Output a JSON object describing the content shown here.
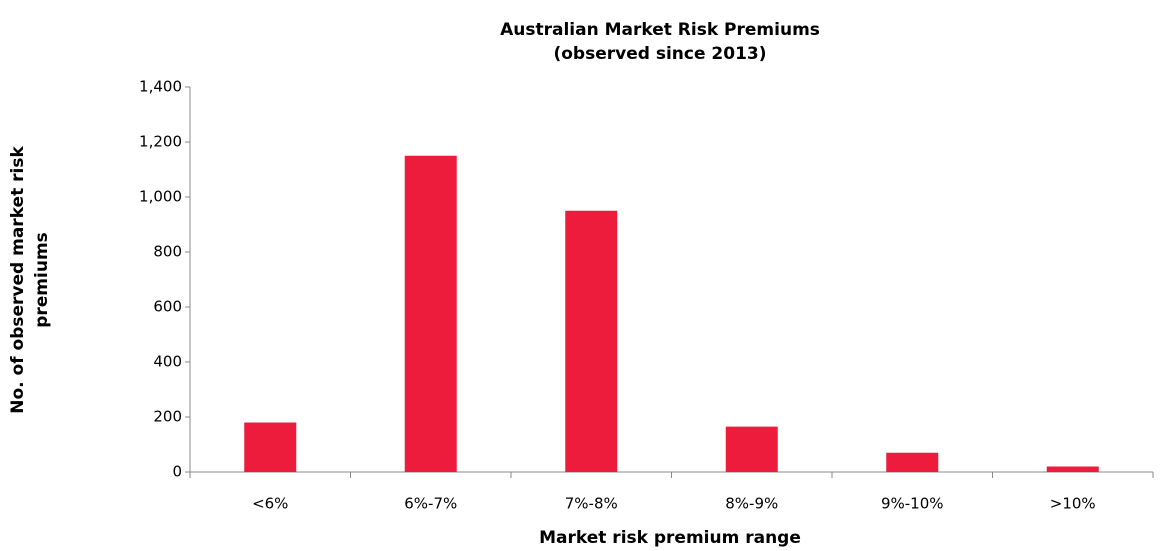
{
  "chart_data": {
    "type": "bar",
    "title": "Australian Market Risk Premiums",
    "subtitle": "(observed since 2013)",
    "x_label": "Market risk premium range",
    "y_label": [
      "No. of observed market risk",
      "premiums"
    ],
    "categories": [
      "<6%",
      "6%-7%",
      "7%-8%",
      "8%-9%",
      "9%-10%",
      ">10%"
    ],
    "values": [
      180,
      1150,
      950,
      165,
      70,
      20
    ],
    "color": "#ed1c3c",
    "ylim": [
      0,
      1400
    ],
    "yticks": [
      0,
      200,
      400,
      600,
      800,
      {
        "value": 1000,
        "label": "1,000"
      },
      {
        "value": 1200,
        "label": "1,200"
      },
      {
        "value": 1400,
        "label": "1,400"
      }
    ],
    "grid": false
  }
}
